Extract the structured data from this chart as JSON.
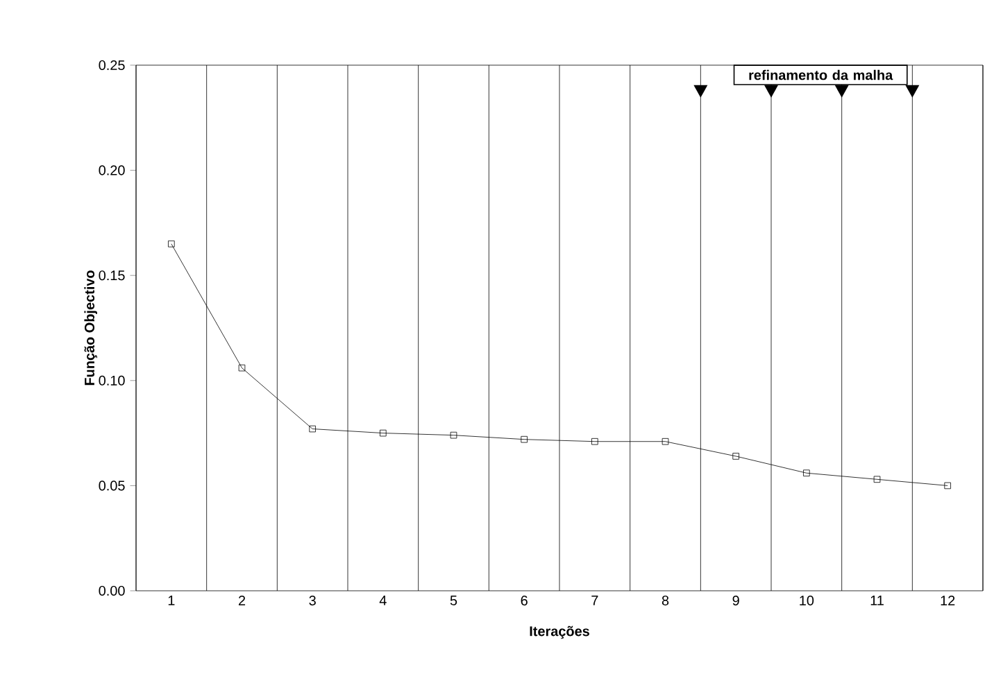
{
  "chart_data": {
    "type": "line",
    "xlabel": "Iterações",
    "ylabel": "Função Objectivo",
    "categories": [
      "1",
      "2",
      "3",
      "4",
      "5",
      "6",
      "7",
      "8",
      "9",
      "10",
      "11",
      "12"
    ],
    "series": [
      {
        "color": "#000000",
        "values": [
          0.165,
          0.106,
          0.077,
          0.075,
          0.074,
          0.072,
          0.071,
          0.071,
          0.064,
          0.056,
          0.053,
          0.05
        ]
      }
    ],
    "ylim": [
      0,
      0.25
    ],
    "yticks": [
      {
        "value": 0,
        "label": "0.00"
      },
      {
        "value": 0.05,
        "label": "0.05"
      },
      {
        "value": 0.1,
        "label": "0.10"
      },
      {
        "value": 0.15,
        "label": "0.15"
      },
      {
        "value": 0.2,
        "label": "0.20"
      },
      {
        "value": 0.25,
        "label": "0.25"
      }
    ],
    "grid": "x",
    "marker": "square",
    "line_style": "solid",
    "annotations": [
      "refinamento da malha"
    ]
  }
}
